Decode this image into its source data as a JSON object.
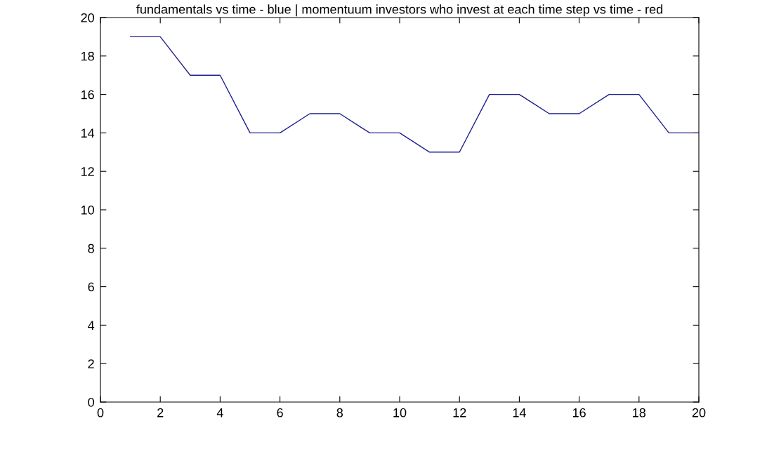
{
  "chart_data": {
    "type": "line",
    "title": "fundamentals vs time - blue | momentuum investors who invest at each time step vs time - red",
    "x": [
      1,
      2,
      3,
      4,
      5,
      6,
      7,
      8,
      9,
      10,
      11,
      12,
      13,
      14,
      15,
      16,
      17,
      18,
      19,
      20
    ],
    "series": [
      {
        "color": "#1f1f8f",
        "values": [
          19,
          19,
          17,
          17,
          14,
          14,
          15,
          15,
          14,
          14,
          13,
          13,
          16,
          16,
          15,
          15,
          16,
          16,
          14,
          14
        ]
      }
    ],
    "xlim": [
      0,
      20
    ],
    "xticks": [
      0,
      2,
      4,
      6,
      8,
      10,
      12,
      14,
      16,
      18,
      20
    ],
    "ylim": [
      0,
      20
    ],
    "yticks": [
      0,
      2,
      4,
      6,
      8,
      10,
      12,
      14,
      16,
      18,
      20
    ],
    "grid": false,
    "marker": "none",
    "line_style": "solid"
  }
}
